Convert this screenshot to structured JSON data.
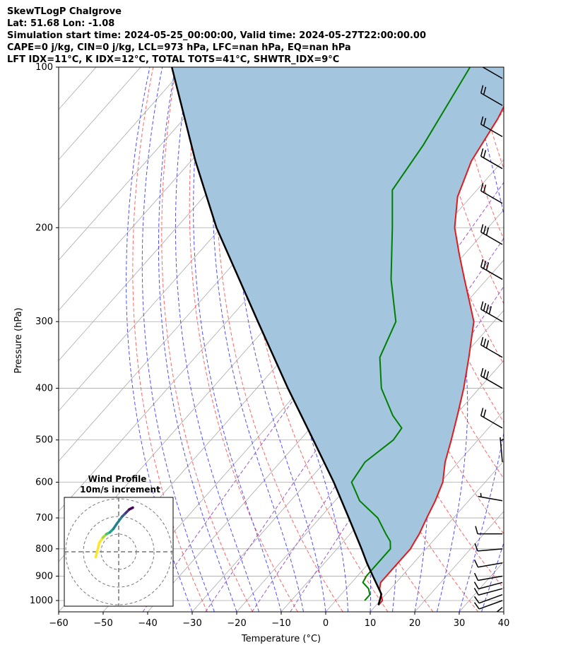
{
  "header": {
    "line1": "SkewTLogP Chalgrove",
    "line2": "Lat: 51.68   Lon: -1.08",
    "line3": "Simulation start time: 2024-05-25_00:00:00, Valid time: 2024-05-27T22:00:00.00",
    "line4": "CAPE=0 j/kg, CIN=0 j/kg, LCL=973 hPa, LFC=nan hPa, EQ=nan hPa",
    "line5": "LFT IDX=11°C, K IDX=12°C, TOTAL TOTS=41°C, SHWTR_IDX=9°C"
  },
  "chart_data": {
    "type": "line",
    "subtype": "skew-t log-p",
    "xlabel": "Temperature (°C)",
    "ylabel": "Pressure (hPa)",
    "xlim": [
      -60,
      40
    ],
    "ylim": [
      1050,
      100
    ],
    "x_ticks": [
      "−60",
      "−50",
      "−40",
      "−30",
      "−20",
      "−10",
      "0",
      "10",
      "20",
      "30",
      "40"
    ],
    "x_tick_values": [
      -60,
      -50,
      -40,
      -30,
      -20,
      -10,
      0,
      10,
      20,
      30,
      40
    ],
    "y_ticks": [
      "100",
      "200",
      "300",
      "400",
      "500",
      "600",
      "700",
      "800",
      "900",
      "1000"
    ],
    "y_tick_values": [
      100,
      200,
      300,
      400,
      500,
      600,
      700,
      800,
      900,
      1000
    ],
    "grid": true,
    "colors": {
      "temperature": "#e31a1c",
      "dewpoint": "#008000",
      "parcel": "#000000",
      "shade": "#a3c6de",
      "dry_adiabat": "#ff6666",
      "moist_adiabat": "#5050ff",
      "mixing_ratio": "#9c5ac8",
      "isotherm": "#aaaaaa"
    },
    "series": [
      {
        "key": "temperature",
        "points": [
          [
            1020,
            10.5
          ],
          [
            1000,
            10.5
          ],
          [
            975,
            9.0
          ],
          [
            950,
            7.5
          ],
          [
            925,
            6.5
          ],
          [
            900,
            6.5
          ],
          [
            875,
            6.5
          ],
          [
            850,
            6.5
          ],
          [
            825,
            6.5
          ],
          [
            800,
            6.5
          ],
          [
            775,
            6.0
          ],
          [
            750,
            5.5
          ],
          [
            700,
            4.0
          ],
          [
            650,
            2.5
          ],
          [
            600,
            0.5
          ],
          [
            550,
            -3.0
          ],
          [
            500,
            -6.0
          ],
          [
            450,
            -9.5
          ],
          [
            400,
            -13.5
          ],
          [
            350,
            -18.5
          ],
          [
            300,
            -24.5
          ],
          [
            275,
            -29.5
          ],
          [
            250,
            -35.0
          ],
          [
            225,
            -41.0
          ],
          [
            200,
            -47.5
          ],
          [
            175,
            -53.0
          ],
          [
            150,
            -57.0
          ],
          [
            125,
            -59.5
          ],
          [
            110,
            -62.0
          ],
          [
            100,
            -63.5
          ]
        ]
      },
      {
        "key": "dewpoint",
        "points": [
          [
            1000,
            6.5
          ],
          [
            975,
            6.5
          ],
          [
            950,
            5.0
          ],
          [
            925,
            2.5
          ],
          [
            900,
            2.0
          ],
          [
            850,
            2.0
          ],
          [
            800,
            2.0
          ],
          [
            775,
            0.5
          ],
          [
            750,
            -2.0
          ],
          [
            700,
            -7.0
          ],
          [
            650,
            -14.5
          ],
          [
            600,
            -20.0
          ],
          [
            550,
            -21.0
          ],
          [
            500,
            -19.0
          ],
          [
            475,
            -19.5
          ],
          [
            450,
            -24.0
          ],
          [
            400,
            -32.0
          ],
          [
            350,
            -38.5
          ],
          [
            300,
            -42.0
          ],
          [
            250,
            -51.5
          ],
          [
            200,
            -61.5
          ],
          [
            170,
            -69.0
          ],
          [
            140,
            -71.0
          ],
          [
            100,
            -76.0
          ]
        ]
      },
      {
        "key": "parcel",
        "points": [
          [
            1020,
            10.5
          ],
          [
            973,
            9.0
          ],
          [
            900,
            3.5
          ],
          [
            850,
            -0.5
          ],
          [
            800,
            -4.5
          ],
          [
            700,
            -13.5
          ],
          [
            600,
            -24.0
          ],
          [
            500,
            -37.0
          ],
          [
            400,
            -53.0
          ],
          [
            300,
            -73.0
          ],
          [
            200,
            -101.0
          ],
          [
            150,
            -119.0
          ],
          [
            100,
            -143.0
          ]
        ]
      }
    ],
    "wind_barbs": [
      {
        "p": 1030,
        "speed_kt": 10,
        "dir": 230
      },
      {
        "p": 1000,
        "speed_kt": 10,
        "dir": 250
      },
      {
        "p": 975,
        "speed_kt": 10,
        "dir": 250
      },
      {
        "p": 950,
        "speed_kt": 10,
        "dir": 255
      },
      {
        "p": 925,
        "speed_kt": 10,
        "dir": 255
      },
      {
        "p": 900,
        "speed_kt": 10,
        "dir": 260
      },
      {
        "p": 850,
        "speed_kt": 10,
        "dir": 260
      },
      {
        "p": 800,
        "speed_kt": 10,
        "dir": 265
      },
      {
        "p": 750,
        "speed_kt": 10,
        "dir": 270
      },
      {
        "p": 650,
        "speed_kt": 5,
        "dir": 280
      },
      {
        "p": 550,
        "speed_kt": 5,
        "dir": 355
      },
      {
        "p": 475,
        "speed_kt": 20,
        "dir": 300
      },
      {
        "p": 400,
        "speed_kt": 30,
        "dir": 300
      },
      {
        "p": 350,
        "speed_kt": 30,
        "dir": 300
      },
      {
        "p": 300,
        "speed_kt": 40,
        "dir": 300
      },
      {
        "p": 250,
        "speed_kt": 30,
        "dir": 300
      },
      {
        "p": 215,
        "speed_kt": 30,
        "dir": 300
      },
      {
        "p": 180,
        "speed_kt": 20,
        "dir": 300
      },
      {
        "p": 155,
        "speed_kt": 20,
        "dir": 300
      },
      {
        "p": 135,
        "speed_kt": 20,
        "dir": 300
      },
      {
        "p": 118,
        "speed_kt": 20,
        "dir": 300
      },
      {
        "p": 105,
        "speed_kt": 10,
        "dir": 300
      }
    ],
    "hodograph": {
      "title": "Wind Profile",
      "subtitle": "10m/s increment",
      "ring_increment_ms": 10,
      "points": [
        [
          -13,
          3
        ],
        [
          -11,
          -5
        ],
        [
          -9,
          -8
        ],
        [
          -7,
          -10
        ],
        [
          -5,
          -11
        ],
        [
          -3,
          -13
        ],
        [
          -1,
          -16
        ],
        [
          2,
          -20
        ],
        [
          4,
          -22
        ],
        [
          6,
          -24
        ],
        [
          8,
          -25
        ]
      ]
    }
  }
}
